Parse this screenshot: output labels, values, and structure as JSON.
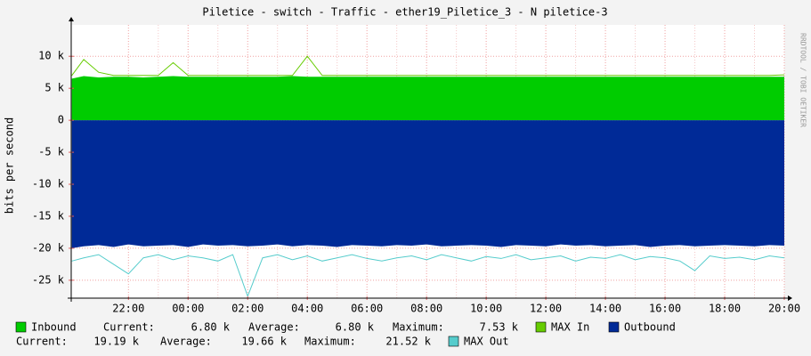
{
  "chart_data": {
    "type": "area",
    "title": "Piletice - switch - Traffic - ether19_Piletice_3 - N piletice-3",
    "y_label": "bits per second",
    "watermark": "RRDTOOL / TOBI OETIKER",
    "grid": true,
    "x": [
      20.1,
      20.5,
      21,
      21.5,
      22,
      22.5,
      23,
      23.5,
      24,
      24.5,
      25,
      25.5,
      26,
      26.5,
      27,
      27.5,
      28,
      28.5,
      29,
      29.5,
      30,
      30.5,
      31,
      31.5,
      32,
      32.5,
      33,
      33.5,
      34,
      34.5,
      35,
      35.5,
      36,
      36.5,
      37,
      37.5,
      38,
      38.5,
      39,
      39.5,
      40,
      40.5,
      41,
      41.5,
      42,
      42.5,
      43,
      43.5,
      44
    ],
    "xlim": [
      20.08,
      44
    ],
    "xticks": [
      {
        "value": 22,
        "label": "22:00"
      },
      {
        "value": 24,
        "label": "00:00"
      },
      {
        "value": 26,
        "label": "02:00"
      },
      {
        "value": 28,
        "label": "04:00"
      },
      {
        "value": 30,
        "label": "06:00"
      },
      {
        "value": 32,
        "label": "08:00"
      },
      {
        "value": 34,
        "label": "10:00"
      },
      {
        "value": 36,
        "label": "12:00"
      },
      {
        "value": 38,
        "label": "14:00"
      },
      {
        "value": 40,
        "label": "16:00"
      },
      {
        "value": 42,
        "label": "18:00"
      },
      {
        "value": 44,
        "label": "20:00"
      }
    ],
    "ylim": [
      -27800,
      14900
    ],
    "yticks": [
      {
        "value": 10000,
        "label": "10 k"
      },
      {
        "value": 5000,
        "label": "5 k"
      },
      0,
      {
        "value": -5000,
        "label": "-5 k"
      },
      {
        "value": -10000,
        "label": "-10 k"
      },
      {
        "value": -15000,
        "label": "-15 k"
      },
      {
        "value": -20000,
        "label": "-20 k"
      },
      {
        "value": -25000,
        "label": "-25 k"
      }
    ],
    "series": [
      {
        "name": "Inbound",
        "color": "#00cc00",
        "style": "area",
        "values": [
          6500,
          6900,
          6700,
          6800,
          6800,
          6700,
          6800,
          6900,
          6800,
          6800,
          6800,
          6800,
          6800,
          6800,
          6800,
          6900,
          6800,
          6800,
          6800,
          6800,
          6800,
          6800,
          6800,
          6800,
          6800,
          6800,
          6800,
          6800,
          6800,
          6800,
          6800,
          6800,
          6800,
          6800,
          6800,
          6800,
          6800,
          6800,
          6800,
          6800,
          6800,
          6800,
          6800,
          6800,
          6800,
          6800,
          6800,
          6800,
          6800
        ]
      },
      {
        "name": "MAX In",
        "color": "#66cc00",
        "style": "line",
        "values": [
          7000,
          9500,
          7500,
          7000,
          7000,
          7000,
          7000,
          9000,
          7000,
          7000,
          7000,
          7000,
          7000,
          7000,
          7000,
          7000,
          10000,
          7000,
          7000,
          7000,
          7000,
          7000,
          7000,
          7000,
          7000,
          7000,
          7000,
          7000,
          7000,
          7000,
          7000,
          7000,
          7000,
          7000,
          7000,
          7000,
          7000,
          7000,
          7000,
          7000,
          7000,
          7000,
          7000,
          7000,
          7000,
          7000,
          7000,
          7000,
          7100
        ]
      },
      {
        "name": "Outbound",
        "color": "#002a97",
        "style": "area",
        "values": [
          -20000,
          -19700,
          -19500,
          -19800,
          -19400,
          -19700,
          -19600,
          -19500,
          -19800,
          -19400,
          -19600,
          -19500,
          -19700,
          -19600,
          -19400,
          -19700,
          -19500,
          -19600,
          -19800,
          -19500,
          -19600,
          -19700,
          -19500,
          -19600,
          -19400,
          -19700,
          -19600,
          -19500,
          -19600,
          -19800,
          -19500,
          -19600,
          -19700,
          -19400,
          -19600,
          -19500,
          -19700,
          -19600,
          -19500,
          -19800,
          -19600,
          -19500,
          -19700,
          -19600,
          -19500,
          -19600,
          -19700,
          -19500,
          -19600
        ]
      },
      {
        "name": "MAX Out",
        "color": "#55cccc",
        "style": "line",
        "values": [
          -22000,
          -21500,
          -21000,
          -22500,
          -24000,
          -21500,
          -21000,
          -21800,
          -21200,
          -21500,
          -22000,
          -21000,
          -27500,
          -21500,
          -21000,
          -21800,
          -21200,
          -22000,
          -21500,
          -21000,
          -21600,
          -22000,
          -21500,
          -21200,
          -21800,
          -21000,
          -21500,
          -22000,
          -21300,
          -21600,
          -21000,
          -21800,
          -21500,
          -21200,
          -22000,
          -21400,
          -21600,
          -21000,
          -21800,
          -21300,
          -21500,
          -22000,
          -23500,
          -21200,
          -21600,
          -21400,
          -21800,
          -21200,
          -21500
        ]
      }
    ],
    "legend_stats": {
      "inbound": [
        "Current:",
        "6.80 k",
        "Average:",
        "6.80 k",
        "Maximum:",
        "7.53 k"
      ],
      "outbound": [
        "Current:",
        "19.19 k",
        "Average:",
        "19.66 k",
        "Maximum:",
        "21.52 k"
      ]
    }
  }
}
